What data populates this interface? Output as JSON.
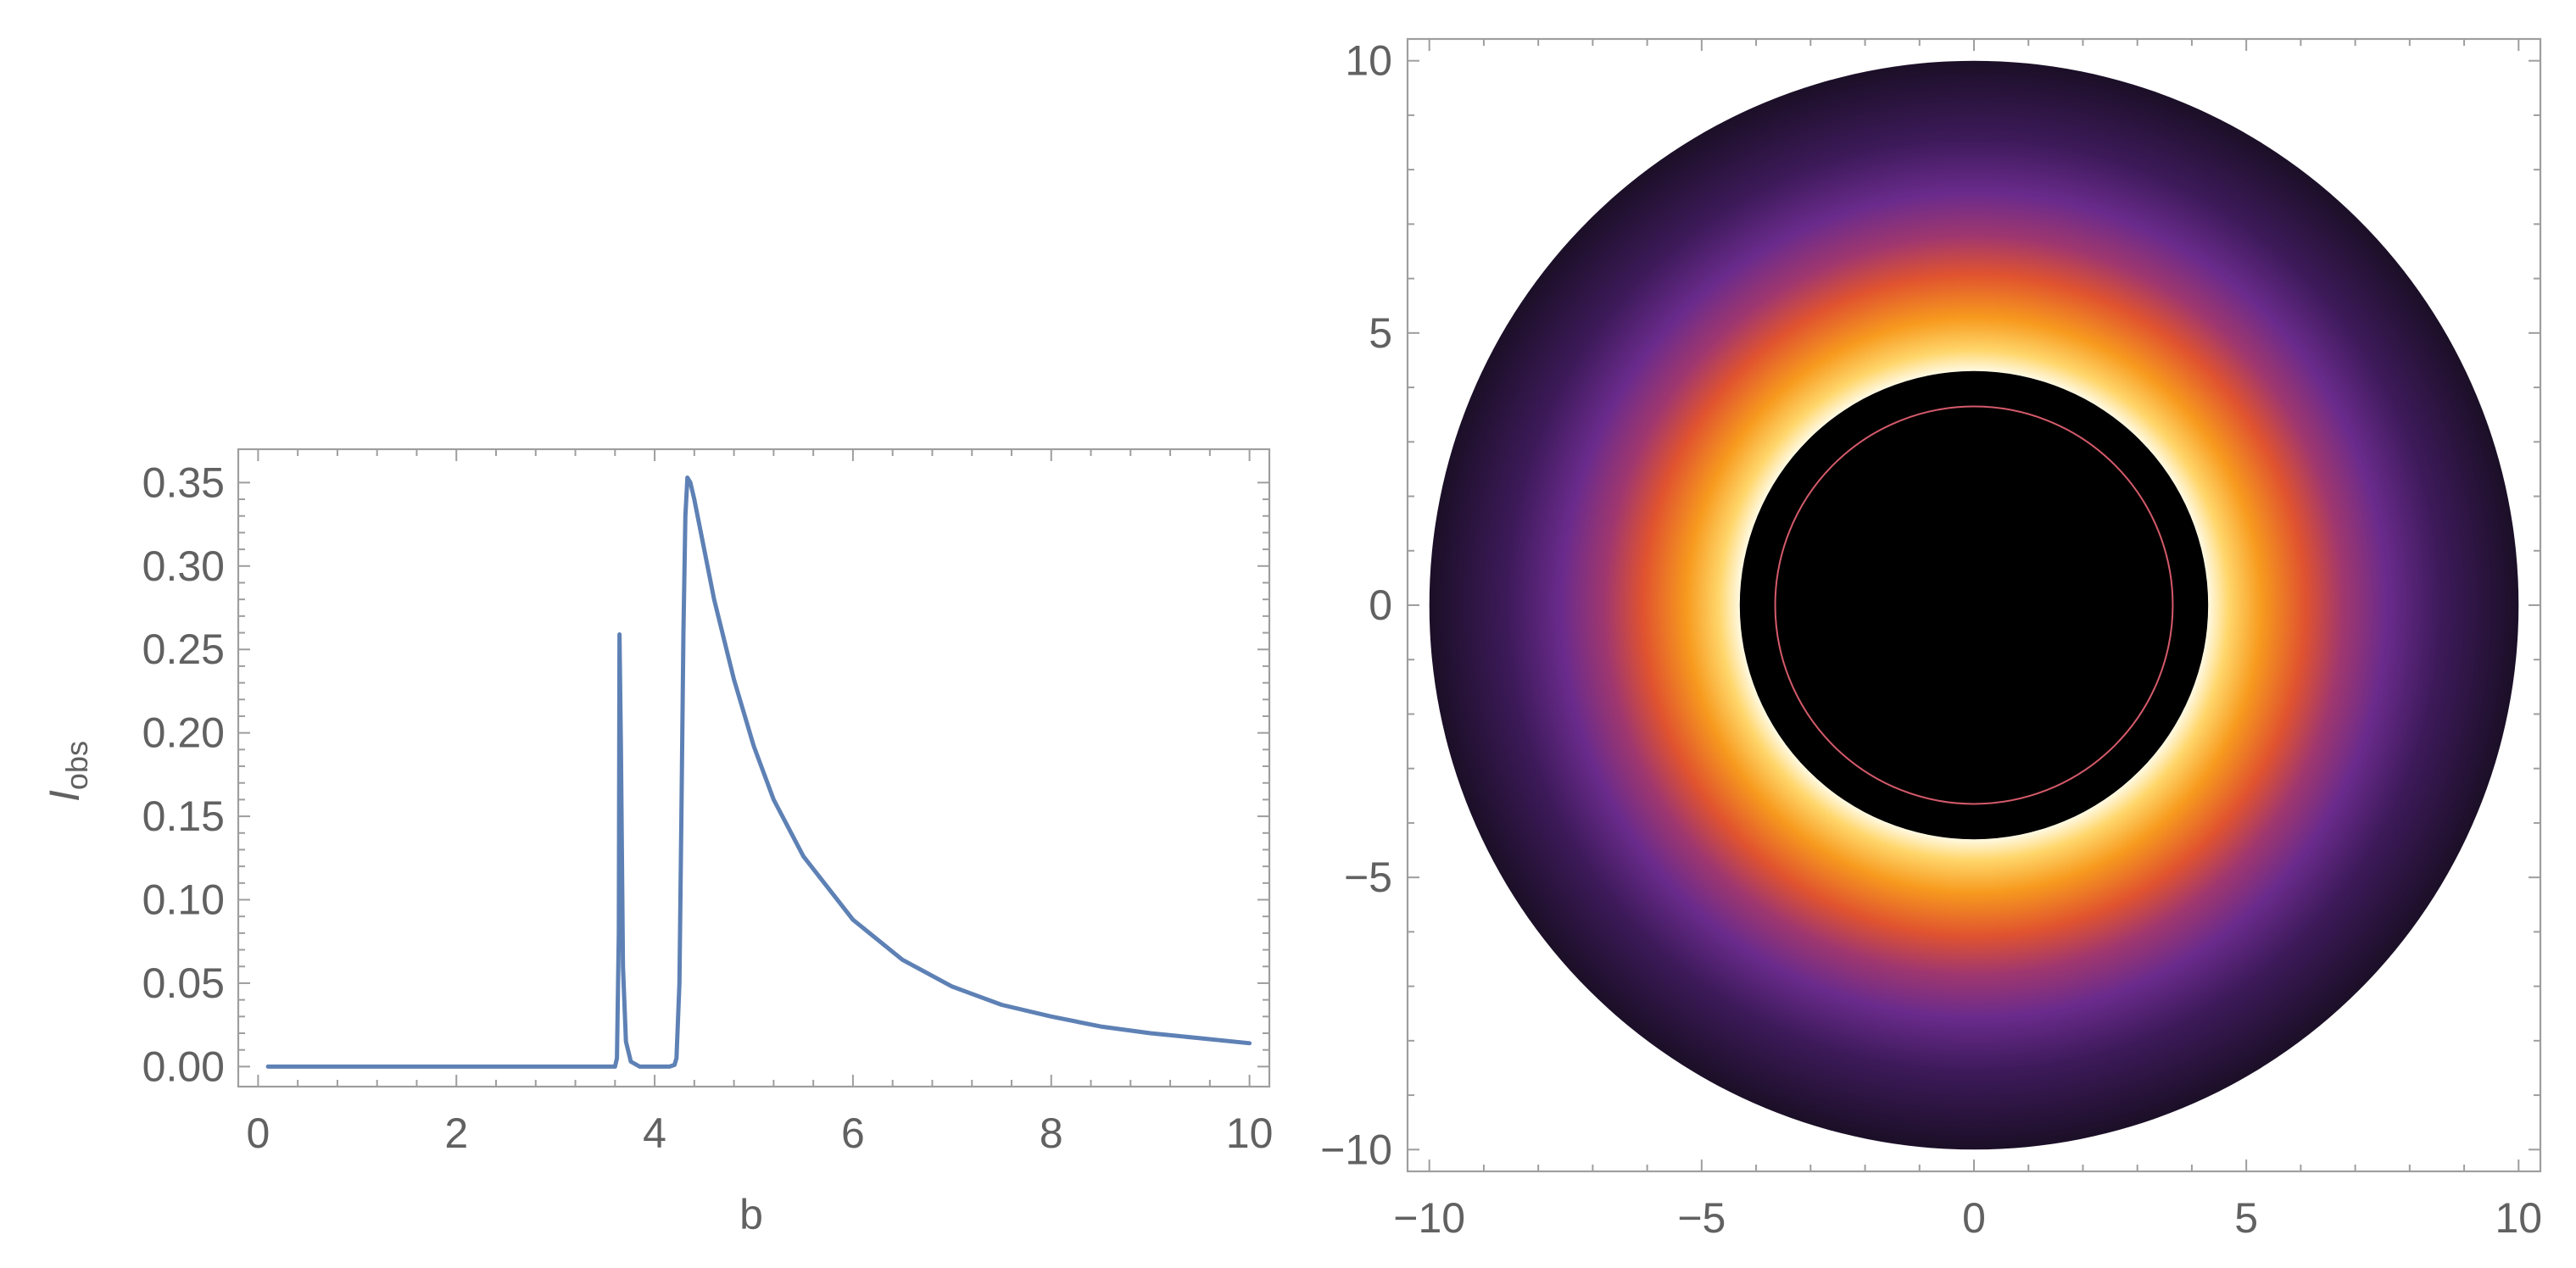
{
  "chart_data": [
    {
      "type": "line",
      "xlabel": "b",
      "ylabel": {
        "main": "I",
        "sub": "obs"
      },
      "xlim": [
        -0.2,
        10.2
      ],
      "ylim": [
        -0.012,
        0.37
      ],
      "x_ticks": [
        0,
        2,
        4,
        6,
        8,
        10
      ],
      "y_ticks": [
        0.0,
        0.05,
        0.1,
        0.15,
        0.2,
        0.25,
        0.3,
        0.35
      ],
      "x_tick_labels": [
        "0",
        "2",
        "4",
        "6",
        "8",
        "10"
      ],
      "y_tick_labels": [
        "0.00",
        "0.05",
        "0.10",
        "0.15",
        "0.20",
        "0.25",
        "0.30",
        "0.35"
      ],
      "series": [
        {
          "color": "#5e81b5",
          "x": [
            0.1,
            3.6,
            3.62,
            3.638,
            3.645,
            3.66,
            3.68,
            3.71,
            3.76,
            3.85,
            4.0,
            4.15,
            4.2,
            4.22,
            4.25,
            4.27,
            4.29,
            4.31,
            4.33,
            4.36,
            4.4,
            4.5,
            4.6,
            4.8,
            5.0,
            5.2,
            5.5,
            6.0,
            6.5,
            7.0,
            7.5,
            8.0,
            8.5,
            9.0,
            9.5,
            10.0
          ],
          "values": [
            0.0,
            0.0,
            0.005,
            0.08,
            0.259,
            0.19,
            0.06,
            0.015,
            0.003,
            0.0,
            0.0,
            0.0,
            0.001,
            0.005,
            0.05,
            0.15,
            0.26,
            0.33,
            0.353,
            0.35,
            0.34,
            0.31,
            0.28,
            0.232,
            0.192,
            0.16,
            0.126,
            0.088,
            0.064,
            0.048,
            0.037,
            0.03,
            0.024,
            0.02,
            0.017,
            0.014
          ]
        }
      ],
      "grid": false
    },
    {
      "type": "heatmap",
      "description_type": "ring-image",
      "xlim": [
        -10.4,
        10.4
      ],
      "ylim": [
        -10.4,
        10.4
      ],
      "x_ticks": [
        -10,
        -5,
        0,
        5,
        10
      ],
      "y_ticks": [
        -10,
        -5,
        0,
        5,
        10
      ],
      "x_tick_labels": [
        "−10",
        "−5",
        "0",
        "5",
        "10"
      ],
      "y_tick_labels": [
        "−10",
        "−5",
        "0",
        "5",
        "10"
      ],
      "outer_radius": 10,
      "inner_bright_edge_radius": 4.3,
      "photon_ring_radius": 3.65,
      "colormap": [
        "#000000",
        "#1c0f28",
        "#3d1a5a",
        "#6a2b8c",
        "#a0376e",
        "#e0532f",
        "#f79a1e",
        "#ffd66b",
        "#fffbe8"
      ],
      "photon_ring_color": "#d45a6a",
      "grid": false
    }
  ]
}
